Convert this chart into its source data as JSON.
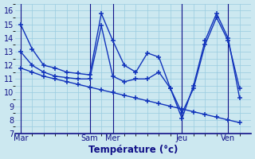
{
  "xlabel": "Température (°c)",
  "background_color": "#cce8f0",
  "grid_color": "#99cce0",
  "line_color": "#1133bb",
  "xlim": [
    0.5,
    21.0
  ],
  "ylim": [
    7.0,
    16.3
  ],
  "yticks": [
    7,
    8,
    9,
    10,
    11,
    12,
    13,
    14,
    15,
    16
  ],
  "xtick_positions": [
    1,
    7,
    9,
    15,
    19
  ],
  "xtick_labels": [
    "Mar",
    "Sam",
    "Mer",
    "Jeu",
    "Ven"
  ],
  "vline_positions": [
    1,
    7,
    9,
    15,
    19
  ],
  "line1_x": [
    1,
    2,
    3,
    4,
    5,
    6,
    7,
    8,
    9,
    10,
    11,
    12,
    13,
    14,
    15,
    16,
    17,
    18,
    19,
    20
  ],
  "line1_y": [
    15.0,
    13.2,
    12.0,
    11.8,
    11.5,
    11.4,
    11.3,
    15.8,
    13.8,
    12.0,
    11.5,
    12.9,
    12.6,
    10.3,
    8.1,
    10.5,
    13.8,
    15.8,
    14.0,
    9.6
  ],
  "line2_x": [
    1,
    2,
    3,
    4,
    5,
    6,
    7,
    8,
    9,
    10,
    11,
    12,
    13,
    14,
    15,
    16,
    17,
    18,
    19,
    20
  ],
  "line2_y": [
    13.0,
    12.0,
    11.5,
    11.2,
    11.1,
    11.0,
    11.0,
    14.9,
    11.2,
    10.8,
    11.0,
    11.0,
    11.5,
    10.3,
    8.5,
    10.3,
    13.5,
    15.5,
    13.8,
    10.3
  ],
  "line3_x": [
    1,
    2,
    3,
    4,
    5,
    6,
    7,
    8,
    9,
    10,
    11,
    12,
    13,
    14,
    15,
    16,
    17,
    18,
    19,
    20
  ],
  "line3_y": [
    11.8,
    11.5,
    11.2,
    11.0,
    10.8,
    10.6,
    10.4,
    10.2,
    10.0,
    9.8,
    9.6,
    9.4,
    9.2,
    9.0,
    8.8,
    8.6,
    8.4,
    8.2,
    8.0,
    7.8
  ],
  "minor_ytick_step": 0.5,
  "minor_xtick_step": 1
}
